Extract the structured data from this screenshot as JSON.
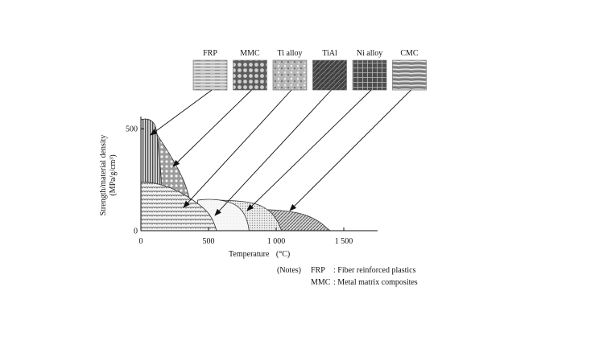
{
  "chart_data": {
    "type": "area",
    "title": "",
    "xlabel": "Temperature",
    "xlabel_unit": "(°C)",
    "ylabel_line1": "Strength/material density",
    "ylabel_line2": "(MPa/g/cm³)",
    "xlim": [
      0,
      1750
    ],
    "ylim": [
      0,
      560
    ],
    "x_ticks": [
      {
        "value": 0,
        "label": "0"
      },
      {
        "value": 500,
        "label": "500"
      },
      {
        "value": 1000,
        "label": "1 000"
      },
      {
        "value": 1500,
        "label": "1 500"
      }
    ],
    "y_ticks": [
      {
        "value": 0,
        "label": "0"
      },
      {
        "value": 500,
        "label": "500"
      }
    ],
    "grid": false,
    "legend": "material thumbnails above the plot with arrows to each region",
    "series": [
      {
        "name": "FRP",
        "x": [
          0,
          50,
          100,
          120,
          150,
          175
        ],
        "y": [
          545,
          550,
          530,
          480,
          270,
          0
        ],
        "pattern": "vertical-lines",
        "color": "#555555"
      },
      {
        "name": "MMC",
        "x": [
          80,
          120,
          200,
          280,
          340,
          380,
          400
        ],
        "y": [
          520,
          470,
          390,
          300,
          210,
          100,
          0
        ],
        "pattern": "coarse-dots",
        "color": "#9a9a9a"
      },
      {
        "name": "Ti alloy",
        "x": [
          0,
          100,
          250,
          400,
          500,
          540,
          560
        ],
        "y": [
          240,
          235,
          205,
          145,
          90,
          40,
          0
        ],
        "pattern": "wavy-scales",
        "color": "#8a8a8a"
      },
      {
        "name": "TiAl",
        "x": [
          420,
          500,
          600,
          700,
          760,
          790,
          800
        ],
        "y": [
          150,
          155,
          150,
          130,
          90,
          40,
          0
        ],
        "pattern": "light-fill",
        "color": "#eeeeee"
      },
      {
        "name": "Ni alloy",
        "x": [
          550,
          700,
          850,
          950,
          1010,
          1040
        ],
        "y": [
          150,
          148,
          135,
          100,
          50,
          0
        ],
        "pattern": "fine-dots",
        "color": "#bbbbbb"
      },
      {
        "name": "CMC",
        "x": [
          850,
          1000,
          1150,
          1250,
          1330,
          1370,
          1400
        ],
        "y": [
          105,
          102,
          90,
          70,
          40,
          15,
          0
        ],
        "pattern": "diagonal-hatch",
        "color": "#777777"
      }
    ]
  },
  "notes": {
    "prefix": "(Notes)",
    "items": [
      {
        "abbr": "FRP",
        "text": ": Fiber reinforced plastics"
      },
      {
        "abbr": "MMC",
        "text": ": Metal matrix composites"
      }
    ]
  },
  "thumbnails": [
    {
      "label": "FRP",
      "texture": "horizontal-fibers",
      "target_series": "FRP"
    },
    {
      "label": "MMC",
      "texture": "dots",
      "target_series": "MMC"
    },
    {
      "label": "Ti alloy",
      "texture": "speckle",
      "target_series": "Ti alloy"
    },
    {
      "label": "TiAl",
      "texture": "dark-lamellar",
      "target_series": "TiAl"
    },
    {
      "label": "Ni alloy",
      "texture": "grid",
      "target_series": "Ni alloy"
    },
    {
      "label": "CMC",
      "texture": "fiber-bundle",
      "target_series": "CMC"
    }
  ]
}
